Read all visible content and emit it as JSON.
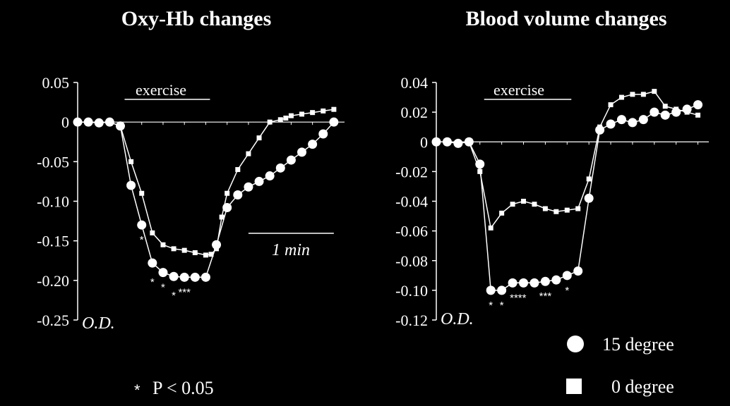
{
  "chart_data": [
    {
      "type": "line",
      "title": "Oxy-Hb changes",
      "ylabel": "O.D.",
      "ylim": [
        -0.25,
        0.05
      ],
      "yticks": [
        "0.05",
        "0",
        "-0.05",
        "-0.10",
        "-0.15",
        "-0.20",
        "-0.25"
      ],
      "ytick_values": [
        0.05,
        0,
        -0.05,
        -0.1,
        -0.15,
        -0.2,
        -0.25
      ],
      "xlim": [
        0,
        25
      ],
      "exercise_label": "exercise",
      "exercise_range": [
        4,
        12
      ],
      "scale_bar_label": "1 min",
      "scale_bar_range": [
        16,
        24
      ],
      "series": [
        {
          "name": "15 degree",
          "marker": "circle",
          "x": [
            0,
            1,
            2,
            3,
            4,
            5,
            6,
            7,
            8,
            9,
            10,
            11,
            12,
            13,
            14,
            15,
            16,
            17,
            18,
            19,
            20,
            21,
            22,
            23,
            24
          ],
          "values": [
            0,
            0,
            -0.001,
            0,
            -0.005,
            -0.08,
            -0.13,
            -0.178,
            -0.19,
            -0.195,
            -0.196,
            -0.196,
            -0.196,
            -0.155,
            -0.108,
            -0.092,
            -0.082,
            -0.075,
            -0.068,
            -0.058,
            -0.048,
            -0.038,
            -0.028,
            -0.015,
            0
          ]
        },
        {
          "name": "0 degree",
          "marker": "square",
          "x": [
            0,
            1,
            2,
            3,
            4,
            5,
            6,
            7,
            8,
            9,
            10,
            11,
            12,
            12.5,
            13,
            13.5,
            14,
            15,
            16,
            17,
            18,
            19,
            19.5,
            20,
            21,
            22,
            23,
            24
          ],
          "values": [
            0,
            0,
            -0.001,
            0,
            -0.005,
            -0.05,
            -0.09,
            -0.14,
            -0.155,
            -0.16,
            -0.162,
            -0.165,
            -0.168,
            -0.167,
            -0.16,
            -0.12,
            -0.09,
            -0.06,
            -0.04,
            -0.02,
            0,
            0.003,
            0.005,
            0.008,
            0.01,
            0.012,
            0.014,
            0.016
          ]
        }
      ],
      "significance": [
        {
          "x": 6,
          "label": "*"
        },
        {
          "x": 7,
          "label": "*"
        },
        {
          "x": 8,
          "label": "*"
        },
        {
          "x": 9,
          "label": "*"
        },
        {
          "x": 10,
          "label": "***"
        }
      ]
    },
    {
      "type": "line",
      "title": "Blood volume changes",
      "ylabel": "O.D.",
      "ylim": [
        -0.12,
        0.04
      ],
      "yticks": [
        "0.04",
        "0.02",
        "0",
        "-0.02",
        "-0.04",
        "-0.06",
        "-0.08",
        "-0.10",
        "-0.12"
      ],
      "ytick_values": [
        0.04,
        0.02,
        0,
        -0.02,
        -0.04,
        -0.06,
        -0.08,
        -0.1,
        -0.12
      ],
      "xlim": [
        0,
        25
      ],
      "exercise_label": "exercise",
      "exercise_range": [
        4,
        12
      ],
      "series": [
        {
          "name": "15 degree",
          "marker": "circle",
          "x": [
            0,
            1,
            2,
            3,
            4,
            5,
            6,
            7,
            8,
            9,
            10,
            11,
            12,
            13,
            14,
            15,
            16,
            17,
            18,
            19,
            20,
            21,
            22,
            23,
            24
          ],
          "values": [
            0,
            0,
            -0.001,
            0,
            -0.015,
            -0.1,
            -0.1,
            -0.095,
            -0.095,
            -0.095,
            -0.094,
            -0.093,
            -0.09,
            -0.087,
            -0.038,
            0.008,
            0.012,
            0.015,
            0.013,
            0.015,
            0.02,
            0.018,
            0.02,
            0.022,
            0.025
          ]
        },
        {
          "name": "0 degree",
          "marker": "square",
          "x": [
            0,
            1,
            2,
            3,
            4,
            5,
            6,
            7,
            8,
            9,
            10,
            11,
            12,
            13,
            14,
            15,
            16,
            17,
            18,
            19,
            20,
            21,
            22,
            23,
            24
          ],
          "values": [
            0,
            0,
            -0.001,
            0,
            -0.02,
            -0.058,
            -0.048,
            -0.042,
            -0.04,
            -0.042,
            -0.045,
            -0.047,
            -0.046,
            -0.045,
            -0.025,
            0.01,
            0.025,
            0.03,
            0.032,
            0.032,
            0.034,
            0.024,
            0.022,
            0.02,
            0.018
          ]
        }
      ],
      "significance": [
        {
          "x": 5,
          "label": "*"
        },
        {
          "x": 6,
          "label": "*"
        },
        {
          "x": 7.5,
          "label": "****"
        },
        {
          "x": 10,
          "label": "***"
        },
        {
          "x": 12,
          "label": "*"
        }
      ]
    }
  ],
  "footnote": {
    "marker": "*",
    "text": "P < 0.05"
  },
  "legend": [
    {
      "label": "15 degree",
      "marker": "circle"
    },
    {
      "label": "0 degree",
      "marker": "square"
    }
  ]
}
